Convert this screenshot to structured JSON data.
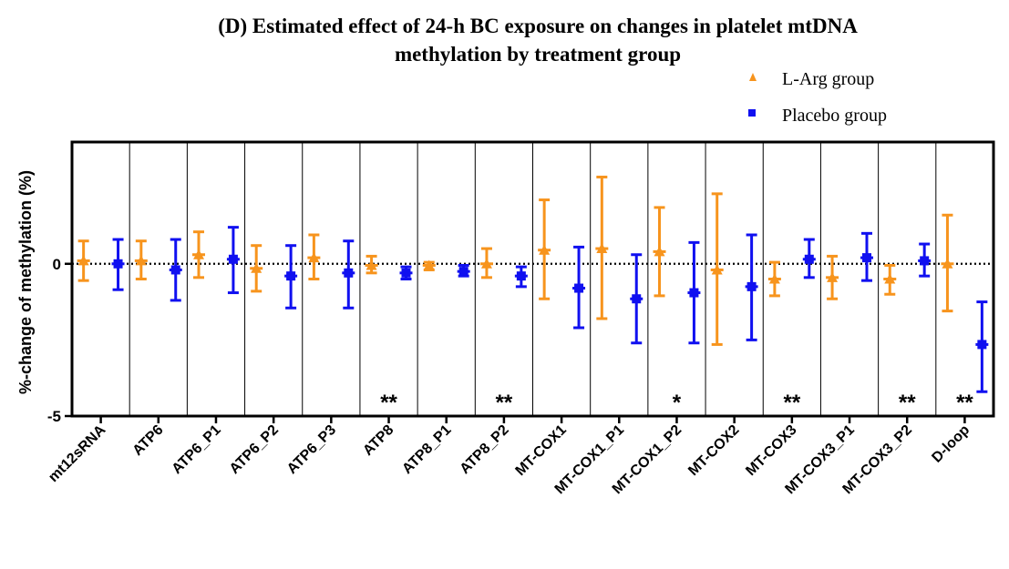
{
  "chart_data": {
    "type": "scatter",
    "title_line1": "(D) Estimated effect of 24-h BC exposure on changes in platelet mtDNA",
    "title_line2": "methylation by treatment group",
    "ylabel": "%-change of methylation (%)",
    "ylim": [
      -5,
      4
    ],
    "yticks": [
      {
        "value": 0,
        "label": "0"
      },
      {
        "value": -5,
        "label": "-5"
      }
    ],
    "reference_line": 0,
    "legend_position": "top-right",
    "categories": [
      "mt12sRNA",
      "ATP6",
      "ATP6_P1",
      "ATP6_P2",
      "ATP6_P3",
      "ATP8",
      "ATP8_P1",
      "ATP8_P2",
      "MT-COX1",
      "MT-COX1_P1",
      "MT-COX1_P2",
      "MT-COX2",
      "MT-COX3",
      "MT-COX3_P1",
      "MT-COX3_P2",
      "D-loop"
    ],
    "significance": [
      "",
      "",
      "",
      "",
      "",
      "**",
      "",
      "**",
      "",
      "",
      "*",
      "",
      "**",
      "",
      "**",
      "**"
    ],
    "series": [
      {
        "name": "L-Arg group",
        "color": "#F7941D",
        "marker": "triangle",
        "values": [
          0.1,
          0.1,
          0.3,
          -0.15,
          0.2,
          -0.05,
          -0.05,
          0.0,
          0.45,
          0.5,
          0.4,
          -0.2,
          -0.5,
          -0.45,
          -0.5,
          0.0
        ],
        "lower": [
          -0.55,
          -0.5,
          -0.45,
          -0.9,
          -0.5,
          -0.3,
          -0.2,
          -0.45,
          -1.15,
          -1.8,
          -1.05,
          -2.65,
          -1.05,
          -1.15,
          -1.0,
          -1.55
        ],
        "upper": [
          0.75,
          0.75,
          1.05,
          0.6,
          0.95,
          0.25,
          0.05,
          0.5,
          2.1,
          2.85,
          1.85,
          2.3,
          0.05,
          0.25,
          -0.05,
          1.6
        ]
      },
      {
        "name": "Placebo group",
        "color": "#1010F0",
        "marker": "square",
        "values": [
          0.0,
          -0.2,
          0.15,
          -0.4,
          -0.3,
          -0.3,
          -0.25,
          -0.4,
          -0.8,
          -1.15,
          -0.95,
          -0.75,
          0.15,
          0.2,
          0.1,
          -2.65
        ],
        "lower": [
          -0.85,
          -1.2,
          -0.95,
          -1.45,
          -1.45,
          -0.5,
          -0.4,
          -0.75,
          -2.1,
          -2.6,
          -2.6,
          -2.5,
          -0.45,
          -0.55,
          -0.4,
          -4.2
        ],
        "upper": [
          0.8,
          0.8,
          1.2,
          0.6,
          0.75,
          -0.1,
          -0.05,
          -0.1,
          0.55,
          0.3,
          0.7,
          0.95,
          0.8,
          1.0,
          0.65,
          -1.25
        ]
      }
    ]
  }
}
